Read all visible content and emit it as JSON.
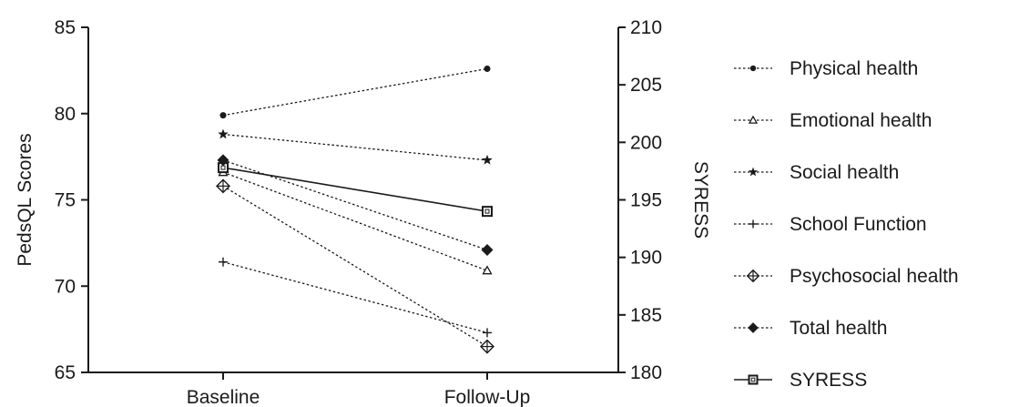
{
  "chart_data": {
    "type": "line",
    "title": "",
    "categories": [
      "Baseline",
      "Follow-Up"
    ],
    "y_left": {
      "label": "PedsQL  Scores",
      "min": 65,
      "max": 85,
      "ticks": [
        65,
        70,
        75,
        80,
        85
      ]
    },
    "y_right": {
      "label": "SYRESS",
      "min": 180,
      "max": 210,
      "ticks": [
        180,
        185,
        190,
        195,
        200,
        205,
        210
      ]
    },
    "grid": false,
    "legend_position": "right",
    "series": [
      {
        "name": "Physical health",
        "axis": "left",
        "marker": "dot",
        "style": "dotted",
        "values": [
          79.9,
          82.6
        ]
      },
      {
        "name": "Emotional health",
        "axis": "left",
        "marker": "triangle",
        "style": "dotted",
        "values": [
          76.6,
          70.9
        ]
      },
      {
        "name": "Social health",
        "axis": "left",
        "marker": "star",
        "style": "dotted",
        "values": [
          78.8,
          77.3
        ]
      },
      {
        "name": "School Function",
        "axis": "left",
        "marker": "plus",
        "style": "dotted",
        "values": [
          71.4,
          67.3
        ]
      },
      {
        "name": "Psychosocial health",
        "axis": "left",
        "marker": "diamond-cross",
        "style": "dotted",
        "values": [
          75.8,
          66.5
        ]
      },
      {
        "name": "Total health",
        "axis": "left",
        "marker": "diamond-filled",
        "style": "dotted",
        "values": [
          77.3,
          72.1
        ]
      },
      {
        "name": "SYRESS",
        "axis": "right",
        "marker": "square-open",
        "style": "solid",
        "values": [
          197.8,
          194.0
        ]
      }
    ]
  }
}
